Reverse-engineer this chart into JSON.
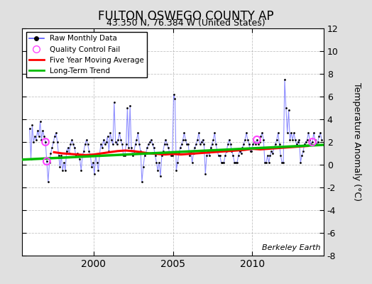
{
  "title": "FULTON OSWEGO COUNTY AP",
  "subtitle": "43.350 N, 76.384 W (United States)",
  "ylabel": "Temperature Anomaly (°C)",
  "watermark": "Berkeley Earth",
  "ylim": [
    -8,
    12
  ],
  "xlim": [
    1995.5,
    2014.5
  ],
  "yticks": [
    -8,
    -6,
    -4,
    -2,
    0,
    2,
    4,
    6,
    8,
    10,
    12
  ],
  "xticks": [
    2000,
    2005,
    2010
  ],
  "bg_color": "#e0e0e0",
  "plot_bg_color": "#ffffff",
  "raw_line_color": "#5555ff",
  "raw_line_alpha": 0.65,
  "raw_marker_color": "#000000",
  "ma_color": "#ff0000",
  "trend_color": "#00bb00",
  "qc_color": "#ff44ff",
  "raw_data_dates": [
    1995.958,
    1996.042,
    1996.125,
    1996.208,
    1996.292,
    1996.375,
    1996.458,
    1996.542,
    1996.625,
    1996.708,
    1996.792,
    1996.875,
    1996.958,
    1997.042,
    1997.125,
    1997.208,
    1997.292,
    1997.375,
    1997.458,
    1997.542,
    1997.625,
    1997.708,
    1997.792,
    1997.875,
    1997.958,
    1998.042,
    1998.125,
    1998.208,
    1998.292,
    1998.375,
    1998.458,
    1998.542,
    1998.625,
    1998.708,
    1998.792,
    1998.875,
    1998.958,
    1999.042,
    1999.125,
    1999.208,
    1999.292,
    1999.375,
    1999.458,
    1999.542,
    1999.625,
    1999.708,
    1999.792,
    1999.875,
    1999.958,
    2000.042,
    2000.125,
    2000.208,
    2000.292,
    2000.375,
    2000.458,
    2000.542,
    2000.625,
    2000.708,
    2000.792,
    2000.875,
    2000.958,
    2001.042,
    2001.125,
    2001.208,
    2001.292,
    2001.375,
    2001.458,
    2001.542,
    2001.625,
    2001.708,
    2001.792,
    2001.875,
    2001.958,
    2002.042,
    2002.125,
    2002.208,
    2002.292,
    2002.375,
    2002.458,
    2002.542,
    2002.625,
    2002.708,
    2002.792,
    2002.875,
    2002.958,
    2003.042,
    2003.125,
    2003.208,
    2003.292,
    2003.375,
    2003.458,
    2003.542,
    2003.625,
    2003.708,
    2003.792,
    2003.875,
    2003.958,
    2004.042,
    2004.125,
    2004.208,
    2004.292,
    2004.375,
    2004.458,
    2004.542,
    2004.625,
    2004.708,
    2004.792,
    2004.875,
    2004.958,
    2005.042,
    2005.125,
    2005.208,
    2005.292,
    2005.375,
    2005.458,
    2005.542,
    2005.625,
    2005.708,
    2005.792,
    2005.875,
    2005.958,
    2006.042,
    2006.125,
    2006.208,
    2006.292,
    2006.375,
    2006.458,
    2006.542,
    2006.625,
    2006.708,
    2006.792,
    2006.875,
    2006.958,
    2007.042,
    2007.125,
    2007.208,
    2007.292,
    2007.375,
    2007.458,
    2007.542,
    2007.625,
    2007.708,
    2007.792,
    2007.875,
    2007.958,
    2008.042,
    2008.125,
    2008.208,
    2008.292,
    2008.375,
    2008.458,
    2008.542,
    2008.625,
    2008.708,
    2008.792,
    2008.875,
    2008.958,
    2009.042,
    2009.125,
    2009.208,
    2009.292,
    2009.375,
    2009.458,
    2009.542,
    2009.625,
    2009.708,
    2009.792,
    2009.875,
    2009.958,
    2010.042,
    2010.125,
    2010.208,
    2010.292,
    2010.375,
    2010.458,
    2010.542,
    2010.625,
    2010.708,
    2010.792,
    2010.875,
    2010.958,
    2011.042,
    2011.125,
    2011.208,
    2011.292,
    2011.375,
    2011.458,
    2011.542,
    2011.625,
    2011.708,
    2011.792,
    2011.875,
    2011.958,
    2012.042,
    2012.125,
    2012.208,
    2012.292,
    2012.375,
    2012.458,
    2012.542,
    2012.625,
    2012.708,
    2012.792,
    2012.875,
    2012.958,
    2013.042,
    2013.125,
    2013.208,
    2013.292,
    2013.375,
    2013.458,
    2013.542,
    2013.625,
    2013.708,
    2013.792,
    2013.875,
    2013.958,
    2014.042,
    2014.125,
    2014.208,
    2014.292,
    2014.375
  ],
  "raw_data_values": [
    3.2,
    0.5,
    3.5,
    2.0,
    2.5,
    2.2,
    3.0,
    2.5,
    3.8,
    2.2,
    3.0,
    2.5,
    2.0,
    0.3,
    -1.5,
    0.2,
    1.0,
    1.5,
    2.0,
    2.5,
    2.8,
    2.0,
    0.8,
    -0.2,
    0.8,
    -0.5,
    0.2,
    -0.5,
    1.2,
    1.5,
    1.0,
    1.8,
    2.2,
    1.8,
    1.5,
    0.8,
    1.0,
    0.8,
    0.5,
    -0.5,
    0.8,
    1.2,
    1.8,
    2.2,
    1.8,
    1.2,
    0.8,
    -0.2,
    0.2,
    -0.8,
    0.8,
    0.2,
    -0.5,
    1.0,
    1.8,
    1.5,
    2.2,
    1.8,
    2.0,
    2.5,
    1.2,
    2.8,
    2.2,
    1.8,
    5.5,
    2.0,
    1.8,
    2.2,
    2.8,
    2.2,
    1.8,
    0.8,
    0.8,
    1.8,
    5.0,
    1.5,
    5.2,
    1.5,
    0.8,
    1.2,
    1.8,
    2.2,
    2.8,
    1.8,
    1.2,
    -1.5,
    -0.2,
    0.8,
    1.0,
    1.5,
    1.8,
    2.0,
    2.2,
    1.8,
    1.5,
    0.8,
    0.2,
    -0.5,
    0.2,
    -1.0,
    0.8,
    1.2,
    1.8,
    2.2,
    1.8,
    1.5,
    1.0,
    0.8,
    0.8,
    6.2,
    5.8,
    -0.5,
    0.2,
    1.0,
    1.5,
    1.8,
    2.2,
    2.8,
    2.2,
    1.8,
    1.8,
    0.8,
    1.2,
    0.2,
    1.0,
    1.5,
    1.8,
    2.2,
    2.8,
    1.8,
    2.0,
    2.2,
    1.8,
    -0.8,
    0.8,
    1.2,
    0.8,
    1.5,
    1.8,
    2.2,
    2.8,
    1.8,
    1.2,
    0.8,
    0.8,
    0.2,
    0.2,
    0.2,
    0.8,
    1.2,
    1.8,
    2.2,
    1.8,
    1.2,
    0.8,
    0.2,
    0.2,
    0.2,
    0.8,
    1.2,
    1.0,
    1.5,
    1.8,
    2.2,
    2.8,
    2.2,
    1.8,
    1.2,
    1.2,
    1.8,
    2.0,
    1.8,
    2.2,
    1.8,
    2.0,
    2.5,
    2.8,
    2.2,
    0.2,
    0.2,
    0.8,
    0.2,
    0.8,
    1.2,
    1.0,
    1.5,
    1.8,
    2.2,
    2.8,
    1.8,
    0.8,
    0.2,
    0.2,
    7.5,
    5.0,
    2.8,
    4.8,
    2.2,
    2.8,
    2.2,
    2.8,
    2.2,
    1.8,
    2.0,
    2.2,
    0.2,
    0.8,
    1.2,
    1.8,
    2.0,
    2.2,
    2.8,
    2.2,
    1.8,
    2.0,
    2.8,
    2.2,
    1.8,
    2.0,
    2.5,
    2.8,
    2.2
  ],
  "qc_dates": [
    1996.958,
    1997.042,
    2010.292,
    2013.792
  ],
  "qc_values": [
    2.0,
    0.3,
    2.2,
    2.0
  ],
  "ma_dates": [
    1997.5,
    1998.0,
    1998.5,
    1999.0,
    1999.5,
    2000.0,
    2000.5,
    2001.0,
    2001.5,
    2002.0,
    2002.5,
    2003.0,
    2003.5,
    2004.0,
    2004.5,
    2005.0,
    2005.5,
    2006.0,
    2006.5,
    2007.0,
    2007.5,
    2008.0,
    2008.5,
    2009.0,
    2009.5,
    2010.0,
    2010.5,
    2011.0,
    2011.5,
    2012.0,
    2012.5,
    2013.0,
    2013.5
  ],
  "ma_values": [
    1.1,
    1.0,
    0.95,
    0.9,
    0.85,
    0.9,
    1.0,
    1.1,
    1.2,
    1.25,
    1.2,
    1.1,
    1.0,
    0.95,
    0.9,
    0.95,
    0.9,
    0.95,
    1.0,
    1.05,
    1.1,
    1.15,
    1.2,
    1.25,
    1.3,
    1.4,
    1.35,
    1.4,
    1.45,
    1.5,
    1.55,
    1.6,
    1.65
  ],
  "trend_dates": [
    1995.5,
    2014.5
  ],
  "trend_values": [
    0.45,
    1.75
  ],
  "legend_labels": [
    "Raw Monthly Data",
    "Quality Control Fail",
    "Five Year Moving Average",
    "Long-Term Trend"
  ]
}
